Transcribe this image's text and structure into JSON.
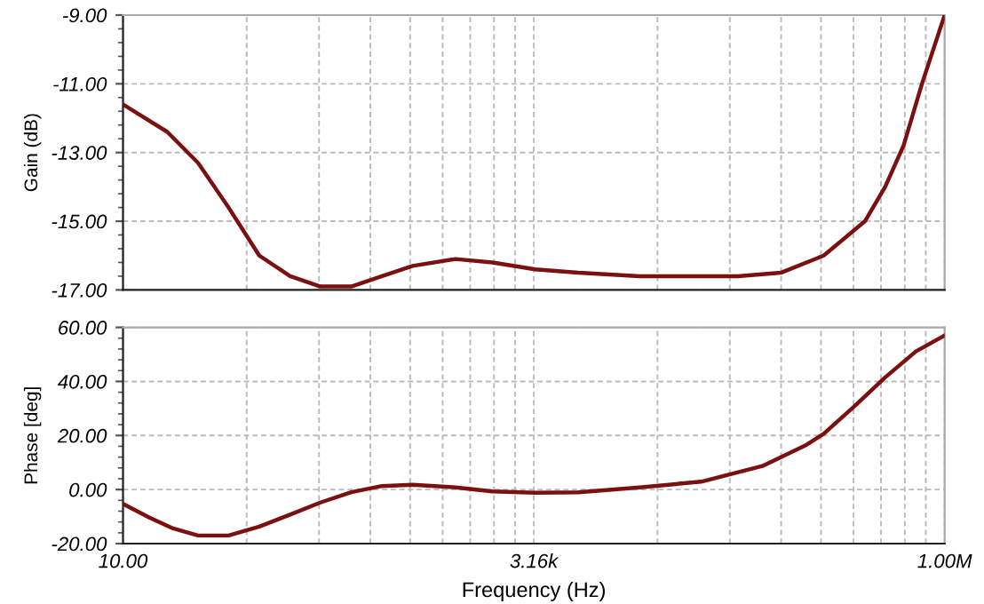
{
  "chart_data": [
    {
      "type": "line",
      "ylabel": "Gain (dB)",
      "log": "x",
      "xlim": [
        10,
        1000000
      ],
      "xticks": [
        10,
        3162,
        1000000
      ],
      "ylim": [
        -17,
        -9
      ],
      "yticks": [
        {
          "value": -17,
          "label": "-17.00"
        },
        {
          "value": -15,
          "label": "-15.00"
        },
        {
          "value": -13,
          "label": "-13.00"
        },
        {
          "value": -11,
          "label": "-11.00"
        },
        {
          "value": -9,
          "label": "-9.00"
        }
      ],
      "tick_labels": "y",
      "grid": true,
      "marker": "none",
      "line_style": "solid",
      "series": [
        {
          "color": "#7a1010",
          "x": [
            10,
            18.6,
            28.6,
            43.9,
            67.5,
            104,
            159,
            245,
            377,
            579,
            1057,
            1770,
            3228,
            5902,
            13930,
            55210,
            100700,
            183700,
            327300,
            434500,
            562300,
            727800,
            1000000
          ],
          "values": [
            -11.6,
            -12.4,
            -13.3,
            -14.6,
            -16.0,
            -16.6,
            -16.9,
            -16.9,
            -16.6,
            -16.3,
            -16.1,
            -16.2,
            -16.4,
            -16.5,
            -16.6,
            -16.6,
            -16.5,
            -16.0,
            -15.0,
            -14.0,
            -12.8,
            -11.0,
            -9.0
          ]
        }
      ]
    },
    {
      "type": "line",
      "ylabel": "Phase [deg]",
      "xlabel": "Frequency (Hz)",
      "log": "x",
      "xlim": [
        10,
        1000000
      ],
      "xticks": [
        {
          "value": 10,
          "label": "10.00"
        },
        {
          "value": 3162,
          "label": "3.16k"
        },
        {
          "value": 1000000,
          "label": "1.00M"
        }
      ],
      "ylim": [
        -20,
        60
      ],
      "yticks": [
        {
          "value": -20,
          "label": "-20.00"
        },
        {
          "value": 0,
          "label": "0.00"
        },
        {
          "value": 20,
          "label": "20.00"
        },
        {
          "value": 40,
          "label": "40.00"
        },
        {
          "value": 60,
          "label": "60.00"
        }
      ],
      "grid": true,
      "marker": "none",
      "line_style": "solid",
      "series": [
        {
          "color": "#7a1010",
          "x": [
            10,
            14.4,
            20.2,
            28.6,
            43.9,
            67.5,
            104,
            159,
            245,
            377,
            579,
            1057,
            1770,
            3228,
            5902,
            13930,
            32970,
            77800,
            141900,
            183700,
            282500,
            434500,
            668300,
            1000000
          ],
          "values": [
            -5.3,
            -10.3,
            -14.4,
            -17.0,
            -17.0,
            -13.7,
            -9.3,
            -4.8,
            -1.0,
            1.3,
            1.8,
            0.8,
            -0.7,
            -1.2,
            -1.0,
            0.8,
            2.9,
            8.7,
            16.3,
            20.6,
            30.8,
            41.5,
            51.1,
            57.0
          ]
        }
      ]
    }
  ]
}
